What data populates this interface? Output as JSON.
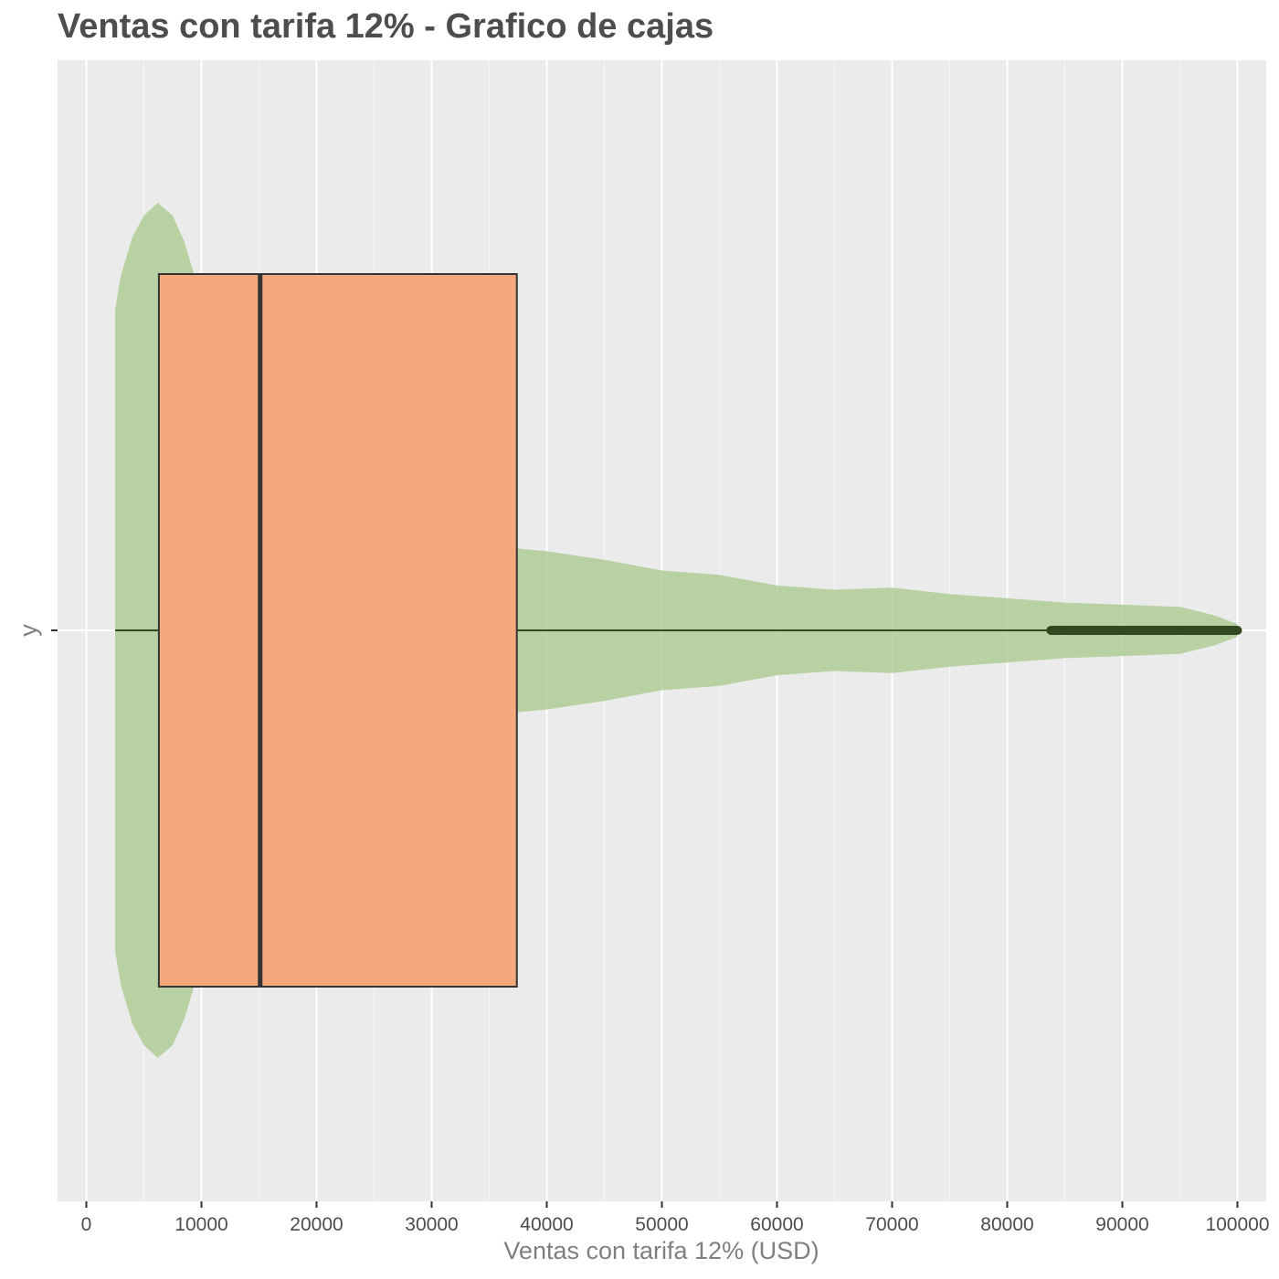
{
  "chart_data": {
    "type": "boxplot",
    "title": "Ventas con tarifa 12% - Grafico de cajas",
    "xlabel": "Ventas con tarifa 12% (USD)",
    "ylabel": "y",
    "y_tick_labels": [
      "-"
    ],
    "orientation": "horizontal",
    "xlim": [
      -2500,
      102500
    ],
    "x_ticks": [
      0,
      10000,
      20000,
      30000,
      40000,
      50000,
      60000,
      70000,
      80000,
      90000,
      100000
    ],
    "x_tick_labels": [
      "0",
      "10000",
      "20000",
      "30000",
      "40000",
      "50000",
      "60000",
      "70000",
      "80000",
      "90000",
      "100000"
    ],
    "grid": true,
    "box": {
      "min": 2500,
      "q1": 6300,
      "median": 15100,
      "q3": 37400,
      "max": 100000,
      "fill": "#f4a97c",
      "outline": "#333333"
    },
    "outliers": {
      "range": [
        83800,
        100000
      ],
      "color": "#34481f"
    },
    "density": {
      "fill": "#a9c98e",
      "profile": [
        [
          2500,
          0.75
        ],
        [
          3000,
          0.83
        ],
        [
          4000,
          0.92
        ],
        [
          5000,
          0.97
        ],
        [
          6200,
          1.0
        ],
        [
          7500,
          0.97
        ],
        [
          8500,
          0.91
        ],
        [
          9500,
          0.82
        ],
        [
          10500,
          0.7
        ],
        [
          12000,
          0.56
        ],
        [
          14000,
          0.43
        ],
        [
          16000,
          0.35
        ],
        [
          18000,
          0.3
        ],
        [
          20000,
          0.26
        ],
        [
          22500,
          0.22
        ],
        [
          25000,
          0.185
        ],
        [
          27500,
          0.165
        ],
        [
          30000,
          0.15
        ],
        [
          35000,
          0.1975
        ],
        [
          40000,
          0.185
        ],
        [
          45000,
          0.165
        ],
        [
          50000,
          0.14
        ],
        [
          55000,
          0.13
        ],
        [
          60000,
          0.105
        ],
        [
          65000,
          0.095
        ],
        [
          70000,
          0.1
        ],
        [
          75000,
          0.085
        ],
        [
          80000,
          0.075
        ],
        [
          85000,
          0.065
        ],
        [
          90000,
          0.06
        ],
        [
          95000,
          0.055
        ],
        [
          98000,
          0.035
        ],
        [
          100000,
          0.015
        ]
      ]
    },
    "colors": {
      "panel": "#ebebeb",
      "grid": "#ffffff",
      "median_line": "#333333",
      "whisker": "#34481f"
    }
  }
}
